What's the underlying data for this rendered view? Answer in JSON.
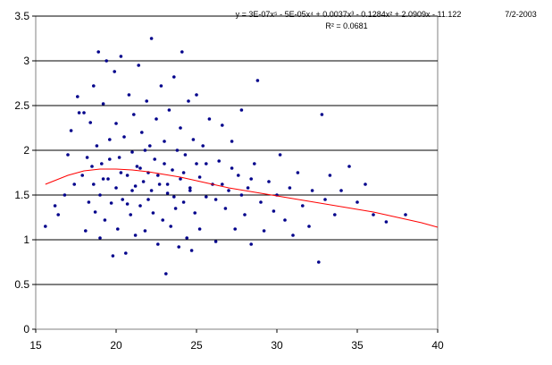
{
  "chart_data": {
    "type": "scatter",
    "title": "",
    "xlabel": "",
    "ylabel": "",
    "xlim": [
      15,
      40
    ],
    "ylim": [
      0,
      3.5
    ],
    "xticks": [
      "15",
      "20",
      "25",
      "30",
      "35",
      "40"
    ],
    "yticks": [
      "0",
      "0.5",
      "1",
      "1.5",
      "2",
      "2.5",
      "3",
      "3.5"
    ],
    "grid": "horizontal",
    "legend": "none",
    "colors": {
      "points": "#00008B",
      "trendline": "#FF0000",
      "gridline": "#000000"
    },
    "series": [
      {
        "values_xy": [
          [
            15.6,
            1.15
          ],
          [
            16.2,
            1.38
          ],
          [
            16.4,
            1.28
          ],
          [
            16.8,
            1.5
          ],
          [
            17.0,
            1.95
          ],
          [
            17.2,
            2.22
          ],
          [
            17.4,
            1.62
          ],
          [
            17.6,
            2.6
          ],
          [
            17.7,
            2.42
          ],
          [
            17.9,
            1.72
          ],
          [
            18.0,
            2.42
          ],
          [
            18.1,
            1.1
          ],
          [
            18.2,
            1.92
          ],
          [
            18.3,
            1.42
          ],
          [
            18.4,
            2.31
          ],
          [
            18.5,
            1.82
          ],
          [
            18.6,
            1.62
          ],
          [
            18.6,
            2.72
          ],
          [
            18.7,
            1.31
          ],
          [
            18.8,
            2.05
          ],
          [
            18.9,
            3.1
          ],
          [
            19.0,
            1.5
          ],
          [
            19.0,
            1.02
          ],
          [
            19.1,
            1.85
          ],
          [
            19.2,
            2.52
          ],
          [
            19.3,
            1.22
          ],
          [
            19.4,
            3.0
          ],
          [
            19.5,
            1.68
          ],
          [
            19.6,
            2.12
          ],
          [
            19.7,
            1.41
          ],
          [
            19.8,
            0.82
          ],
          [
            19.9,
            2.88
          ],
          [
            20.0,
            1.58
          ],
          [
            20.0,
            2.3
          ],
          [
            20.1,
            1.12
          ],
          [
            20.2,
            1.92
          ],
          [
            20.3,
            3.05
          ],
          [
            20.4,
            1.45
          ],
          [
            20.5,
            2.15
          ],
          [
            20.6,
            0.85
          ],
          [
            20.7,
            1.72
          ],
          [
            20.8,
            2.62
          ],
          [
            20.9,
            1.28
          ],
          [
            21.0,
            1.98
          ],
          [
            21.0,
            1.55
          ],
          [
            21.1,
            2.4
          ],
          [
            21.2,
            1.05
          ],
          [
            21.3,
            1.82
          ],
          [
            21.4,
            2.95
          ],
          [
            21.5,
            1.38
          ],
          [
            21.6,
            2.2
          ],
          [
            21.7,
            1.65
          ],
          [
            21.8,
            1.1
          ],
          [
            21.9,
            2.55
          ],
          [
            22.0,
            1.75
          ],
          [
            22.0,
            1.45
          ],
          [
            22.1,
            2.05
          ],
          [
            22.2,
            3.25
          ],
          [
            22.3,
            1.3
          ],
          [
            22.4,
            1.9
          ],
          [
            22.5,
            2.35
          ],
          [
            22.6,
            0.95
          ],
          [
            22.7,
            1.62
          ],
          [
            22.8,
            2.72
          ],
          [
            22.9,
            1.22
          ],
          [
            23.0,
            1.85
          ],
          [
            23.0,
            2.1
          ],
          [
            23.1,
            0.62
          ],
          [
            23.2,
            1.52
          ],
          [
            23.3,
            2.45
          ],
          [
            23.4,
            1.15
          ],
          [
            23.5,
            1.78
          ],
          [
            23.6,
            2.82
          ],
          [
            23.7,
            1.35
          ],
          [
            23.8,
            2.0
          ],
          [
            23.9,
            0.92
          ],
          [
            24.0,
            1.68
          ],
          [
            24.0,
            2.25
          ],
          [
            24.1,
            3.1
          ],
          [
            24.2,
            1.42
          ],
          [
            24.3,
            1.95
          ],
          [
            24.4,
            1.02
          ],
          [
            24.5,
            2.55
          ],
          [
            24.6,
            1.58
          ],
          [
            24.7,
            0.88
          ],
          [
            24.8,
            2.12
          ],
          [
            24.9,
            1.3
          ],
          [
            25.0,
            1.85
          ],
          [
            25.0,
            2.62
          ],
          [
            25.2,
            1.12
          ],
          [
            25.4,
            2.05
          ],
          [
            25.6,
            1.48
          ],
          [
            25.8,
            2.35
          ],
          [
            26.0,
            1.62
          ],
          [
            26.2,
            0.98
          ],
          [
            26.4,
            1.88
          ],
          [
            26.6,
            2.28
          ],
          [
            26.8,
            1.35
          ],
          [
            27.0,
            1.55
          ],
          [
            27.2,
            2.1
          ],
          [
            27.4,
            1.12
          ],
          [
            27.6,
            1.72
          ],
          [
            27.8,
            2.45
          ],
          [
            28.0,
            1.28
          ],
          [
            28.2,
            1.58
          ],
          [
            28.4,
            0.95
          ],
          [
            28.6,
            1.85
          ],
          [
            28.8,
            2.78
          ],
          [
            29.0,
            1.42
          ],
          [
            29.2,
            1.1
          ],
          [
            29.5,
            1.65
          ],
          [
            29.8,
            1.32
          ],
          [
            30.0,
            1.5
          ],
          [
            30.2,
            1.95
          ],
          [
            30.5,
            1.22
          ],
          [
            30.8,
            1.58
          ],
          [
            31.0,
            1.05
          ],
          [
            31.3,
            1.75
          ],
          [
            31.6,
            1.38
          ],
          [
            32.0,
            1.15
          ],
          [
            32.2,
            1.55
          ],
          [
            32.6,
            0.75
          ],
          [
            32.8,
            2.4
          ],
          [
            33.0,
            1.45
          ],
          [
            33.3,
            1.72
          ],
          [
            33.6,
            1.28
          ],
          [
            34.0,
            1.55
          ],
          [
            34.5,
            1.82
          ],
          [
            35.0,
            1.42
          ],
          [
            35.5,
            1.62
          ],
          [
            36.0,
            1.28
          ],
          [
            36.8,
            1.2
          ],
          [
            38.0,
            1.28
          ],
          [
            19.2,
            1.68
          ],
          [
            19.6,
            1.9
          ],
          [
            20.3,
            1.75
          ],
          [
            20.7,
            1.4
          ],
          [
            21.2,
            1.6
          ],
          [
            21.5,
            1.8
          ],
          [
            21.8,
            2.0
          ],
          [
            22.2,
            1.55
          ],
          [
            22.6,
            1.72
          ],
          [
            23.2,
            1.62
          ],
          [
            23.6,
            1.48
          ],
          [
            24.2,
            1.75
          ],
          [
            24.6,
            1.55
          ],
          [
            25.2,
            1.7
          ],
          [
            25.6,
            1.85
          ],
          [
            26.2,
            1.45
          ],
          [
            26.6,
            1.62
          ],
          [
            27.2,
            1.8
          ],
          [
            27.8,
            1.5
          ],
          [
            28.4,
            1.68
          ]
        ]
      }
    ],
    "trendline": {
      "type": "polynomial",
      "equation": "y = 3E-07x⁵ - 5E-05x⁴ + 0.0037x³ - 0.1284x² + 2.0909x - 11.122",
      "r2": "R² = 0.0681",
      "points": [
        [
          15.6,
          1.62
        ],
        [
          17,
          1.72
        ],
        [
          18,
          1.77
        ],
        [
          19,
          1.79
        ],
        [
          20,
          1.79
        ],
        [
          21,
          1.78
        ],
        [
          22,
          1.76
        ],
        [
          23,
          1.73
        ],
        [
          24,
          1.7
        ],
        [
          25,
          1.66
        ],
        [
          26,
          1.62
        ],
        [
          27,
          1.58
        ],
        [
          28,
          1.55
        ],
        [
          29,
          1.52
        ],
        [
          30,
          1.49
        ],
        [
          31,
          1.46
        ],
        [
          32,
          1.43
        ],
        [
          33,
          1.4
        ],
        [
          34,
          1.37
        ],
        [
          35,
          1.34
        ],
        [
          36,
          1.31
        ],
        [
          37,
          1.27
        ],
        [
          38,
          1.23
        ],
        [
          39,
          1.19
        ],
        [
          40,
          1.14
        ]
      ]
    },
    "date": "7/2-2003"
  }
}
